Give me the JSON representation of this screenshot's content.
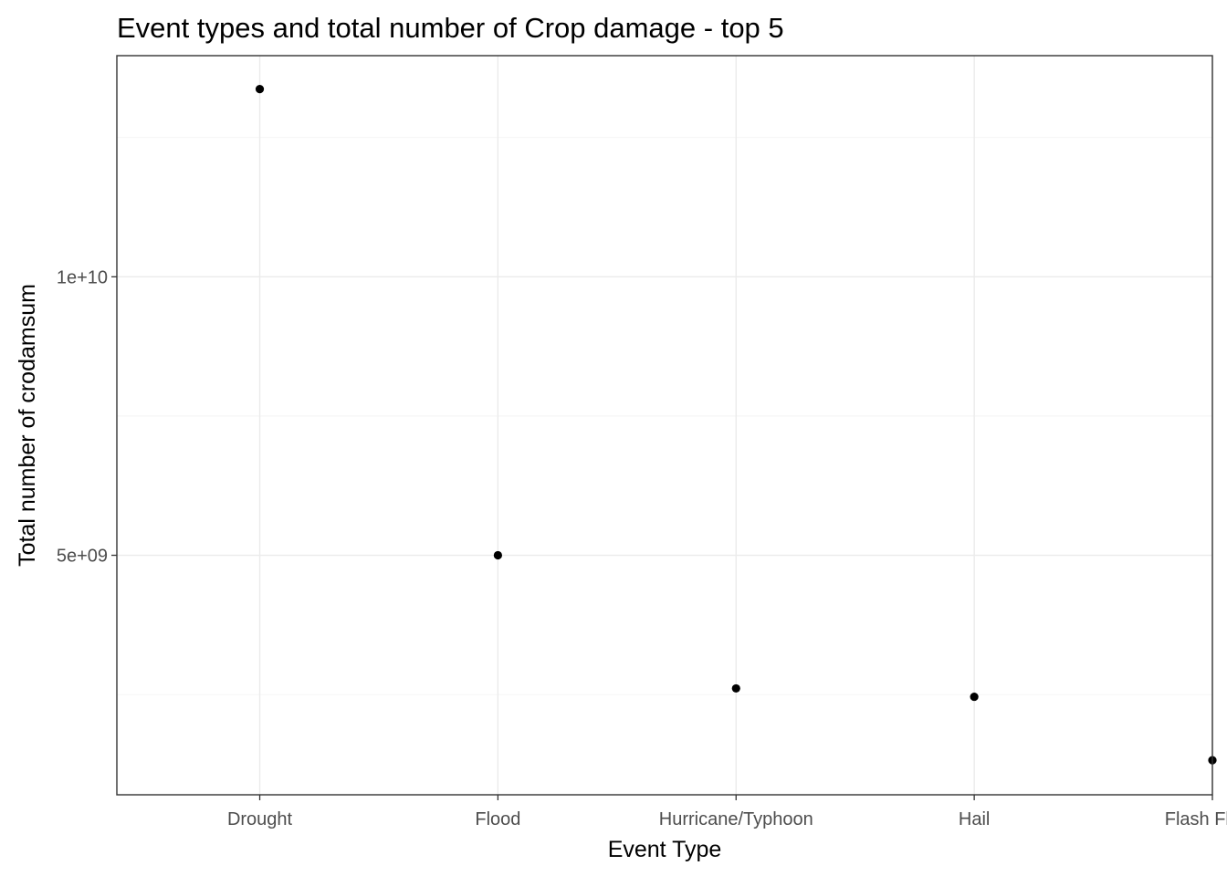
{
  "chart_data": {
    "type": "scatter",
    "title": "Event types and total number of Crop damage - top 5",
    "xlabel": "Event Type",
    "ylabel": "Total number of crodamsum",
    "categories": [
      "Drought",
      "Flood",
      "Hurricane/Typhoon",
      "Hail",
      "Flash Flood"
    ],
    "values": [
      13370000000,
      5000000000,
      2610000000,
      2460000000,
      1320000000
    ],
    "ylim": [
      0.7,
      13.97
    ],
    "y_ticks": [
      {
        "value": 5000000000,
        "label": "5e+09"
      },
      {
        "value": 10000000000,
        "label": "1e+10"
      }
    ],
    "y_minor_gridlines": [
      2500000000,
      7500000000,
      12500000000
    ],
    "grid": true,
    "legend": "none"
  }
}
